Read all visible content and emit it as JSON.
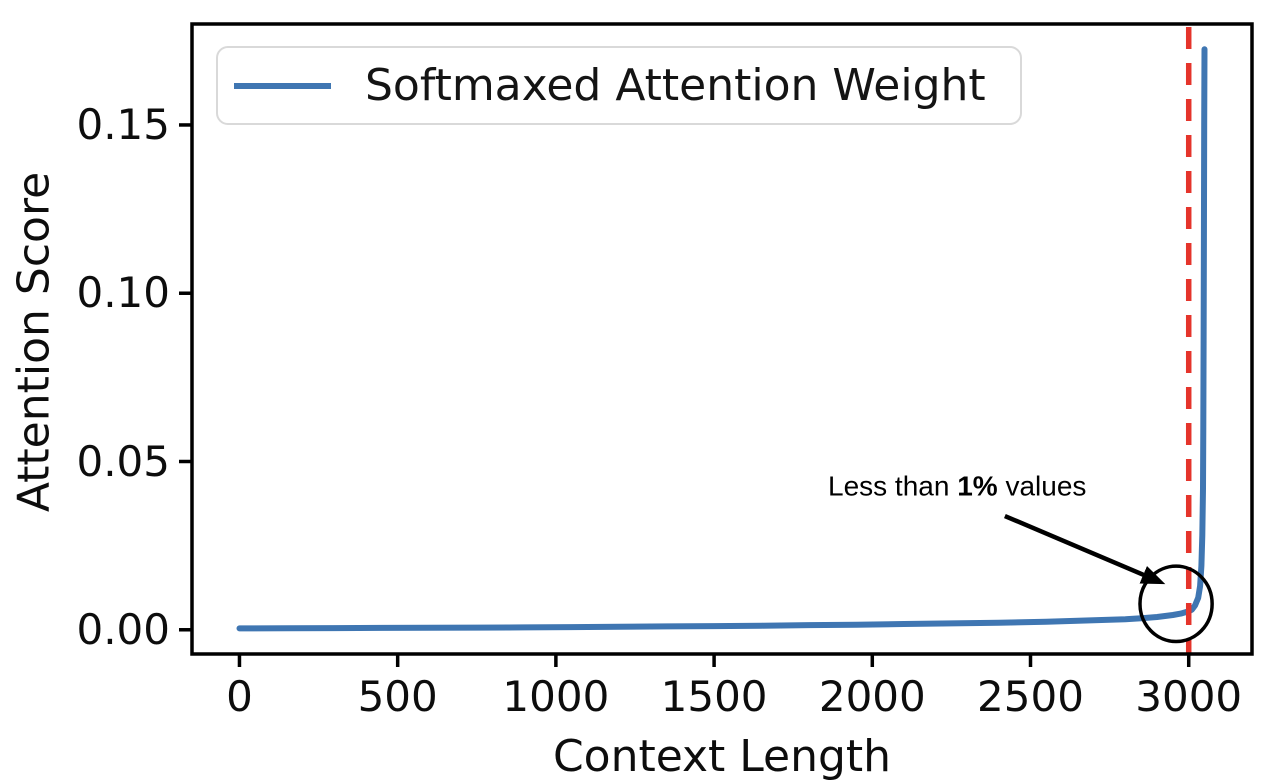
{
  "figure": {
    "background": "#ffffff",
    "spine_color": "#000000"
  },
  "chart_data": {
    "type": "line",
    "title": "",
    "xlabel": "Context Length",
    "ylabel": "Attention Score",
    "grid": false,
    "legend_position": "upper left",
    "xlim": [
      -150,
      3200
    ],
    "ylim": [
      -0.0072,
      0.18
    ],
    "xticks": [
      0,
      500,
      1000,
      1500,
      2000,
      2500,
      3000
    ],
    "ytick_labels": [
      "0.00",
      "0.05",
      "0.10",
      "0.15"
    ],
    "ytick_values": [
      0,
      0.05,
      0.1,
      0.15
    ],
    "series": [
      {
        "name": "Softmaxed Attention Weight",
        "color": "#3f76b2",
        "points": [
          [
            0,
            0.0004
          ],
          [
            150,
            0.00045
          ],
          [
            300,
            0.0005
          ],
          [
            450,
            0.00055
          ],
          [
            600,
            0.0006
          ],
          [
            750,
            0.00065
          ],
          [
            900,
            0.0007
          ],
          [
            1050,
            0.0008
          ],
          [
            1200,
            0.0009
          ],
          [
            1350,
            0.001
          ],
          [
            1500,
            0.0011
          ],
          [
            1650,
            0.0012
          ],
          [
            1800,
            0.0014
          ],
          [
            1950,
            0.0015
          ],
          [
            2100,
            0.0017
          ],
          [
            2250,
            0.0019
          ],
          [
            2400,
            0.0021
          ],
          [
            2550,
            0.0024
          ],
          [
            2700,
            0.0028
          ],
          [
            2800,
            0.0031
          ],
          [
            2850,
            0.0034
          ],
          [
            2900,
            0.0038
          ],
          [
            2950,
            0.0044
          ],
          [
            2975,
            0.0048
          ],
          [
            3000,
            0.0055
          ],
          [
            3010,
            0.006
          ],
          [
            3020,
            0.0072
          ],
          [
            3030,
            0.0095
          ],
          [
            3036,
            0.013
          ],
          [
            3040,
            0.019
          ],
          [
            3043,
            0.028
          ],
          [
            3045,
            0.042
          ],
          [
            3046,
            0.06
          ],
          [
            3047,
            0.085
          ],
          [
            3048,
            0.115
          ],
          [
            3049,
            0.15
          ],
          [
            3050,
            0.1725
          ]
        ]
      }
    ],
    "vline": {
      "x": 3000,
      "color": "#e5342b",
      "style": "dashed"
    },
    "annotation": {
      "full_text": "Less than 1% values",
      "prefix": "Less than ",
      "bold_part": "1%",
      "suffix": " values",
      "text_anchor": [
        1860,
        0.0424
      ],
      "arrow_from": [
        2419,
        0.0338
      ],
      "arrow_to": [
        2865,
        0.016
      ],
      "circle_center": [
        2960,
        0.0077
      ],
      "circle_rx": 114,
      "circle_ry": 0.0112
    }
  }
}
